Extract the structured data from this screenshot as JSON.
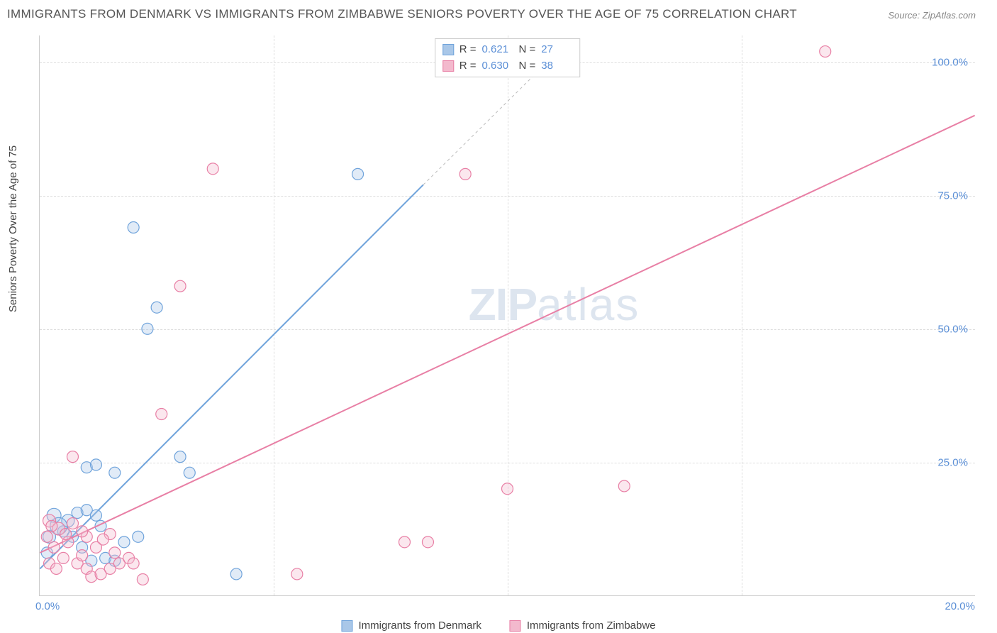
{
  "title": "IMMIGRANTS FROM DENMARK VS IMMIGRANTS FROM ZIMBABWE SENIORS POVERTY OVER THE AGE OF 75 CORRELATION CHART",
  "source": "Source: ZipAtlas.com",
  "watermark_zip": "ZIP",
  "watermark_atlas": "atlas",
  "y_axis_label": "Seniors Poverty Over the Age of 75",
  "chart": {
    "type": "scatter",
    "background_color": "#ffffff",
    "grid_color": "#dddddd",
    "axis_color": "#cccccc",
    "tick_color": "#5b8fd6",
    "tick_fontsize": 15,
    "title_fontsize": 17,
    "title_color": "#555555",
    "xlim": [
      0,
      20
    ],
    "ylim": [
      0,
      105
    ],
    "y_ticks": [
      25,
      50,
      75,
      100
    ],
    "y_tick_labels": [
      "25.0%",
      "50.0%",
      "75.0%",
      "100.0%"
    ],
    "x_ticks": [
      0,
      20
    ],
    "x_tick_labels": [
      "0.0%",
      "20.0%"
    ],
    "x_grid_positions": [
      5,
      10,
      15
    ],
    "marker_radius": 8,
    "marker_stroke_width": 1.2,
    "marker_fill_opacity": 0.35,
    "trend_line_width": 2,
    "dash_line_width": 1,
    "dash_pattern": "4 4",
    "series": [
      {
        "id": "denmark",
        "label": "Immigrants from Denmark",
        "color": "#6fa3db",
        "fill": "#a9c7e8",
        "r_value": "0.621",
        "n_value": "27",
        "trend": {
          "x1": 0,
          "y1": 5,
          "x2": 8.2,
          "y2": 77
        },
        "dash_ext": {
          "x1": 8.2,
          "y1": 77,
          "x2": 11.2,
          "y2": 103
        },
        "points": [
          {
            "x": 2.0,
            "y": 69,
            "r": 8
          },
          {
            "x": 2.5,
            "y": 54,
            "r": 8
          },
          {
            "x": 2.3,
            "y": 50,
            "r": 8
          },
          {
            "x": 6.8,
            "y": 79,
            "r": 8
          },
          {
            "x": 1.0,
            "y": 24,
            "r": 8
          },
          {
            "x": 1.2,
            "y": 24.5,
            "r": 8
          },
          {
            "x": 1.6,
            "y": 23,
            "r": 8
          },
          {
            "x": 3.0,
            "y": 26,
            "r": 8
          },
          {
            "x": 3.2,
            "y": 23,
            "r": 8
          },
          {
            "x": 0.3,
            "y": 15,
            "r": 10
          },
          {
            "x": 0.6,
            "y": 14,
            "r": 9
          },
          {
            "x": 0.8,
            "y": 15.5,
            "r": 8
          },
          {
            "x": 1.0,
            "y": 16,
            "r": 8
          },
          {
            "x": 1.2,
            "y": 15,
            "r": 8
          },
          {
            "x": 0.5,
            "y": 12,
            "r": 8
          },
          {
            "x": 0.2,
            "y": 11,
            "r": 9
          },
          {
            "x": 0.9,
            "y": 9,
            "r": 8
          },
          {
            "x": 1.1,
            "y": 6.5,
            "r": 8
          },
          {
            "x": 1.4,
            "y": 7,
            "r": 8
          },
          {
            "x": 1.6,
            "y": 6.5,
            "r": 8
          },
          {
            "x": 2.1,
            "y": 11,
            "r": 8
          },
          {
            "x": 0.4,
            "y": 13,
            "r": 12
          },
          {
            "x": 0.7,
            "y": 11,
            "r": 8
          },
          {
            "x": 1.8,
            "y": 10,
            "r": 8
          },
          {
            "x": 4.2,
            "y": 4,
            "r": 8
          },
          {
            "x": 0.15,
            "y": 8,
            "r": 8
          },
          {
            "x": 1.3,
            "y": 13,
            "r": 8
          }
        ]
      },
      {
        "id": "zimbabwe",
        "label": "Immigrants from Zimbabwe",
        "color": "#e87fa5",
        "fill": "#f3b9cd",
        "r_value": "0.630",
        "n_value": "38",
        "trend": {
          "x1": 0,
          "y1": 8,
          "x2": 20,
          "y2": 90
        },
        "dash_ext": null,
        "points": [
          {
            "x": 16.8,
            "y": 102,
            "r": 8
          },
          {
            "x": 3.7,
            "y": 80,
            "r": 8
          },
          {
            "x": 9.1,
            "y": 79,
            "r": 8
          },
          {
            "x": 3.0,
            "y": 58,
            "r": 8
          },
          {
            "x": 2.6,
            "y": 34,
            "r": 8
          },
          {
            "x": 0.7,
            "y": 26,
            "r": 8
          },
          {
            "x": 10.0,
            "y": 20,
            "r": 8
          },
          {
            "x": 12.5,
            "y": 20.5,
            "r": 8
          },
          {
            "x": 7.8,
            "y": 10,
            "r": 8
          },
          {
            "x": 8.3,
            "y": 10,
            "r": 8
          },
          {
            "x": 5.5,
            "y": 4,
            "r": 8
          },
          {
            "x": 2.2,
            "y": 3,
            "r": 8
          },
          {
            "x": 0.2,
            "y": 14,
            "r": 9
          },
          {
            "x": 0.4,
            "y": 12.5,
            "r": 9
          },
          {
            "x": 0.6,
            "y": 10,
            "r": 8
          },
          {
            "x": 0.3,
            "y": 9,
            "r": 8
          },
          {
            "x": 0.5,
            "y": 7,
            "r": 8
          },
          {
            "x": 0.8,
            "y": 6,
            "r": 8
          },
          {
            "x": 1.0,
            "y": 5,
            "r": 8
          },
          {
            "x": 1.1,
            "y": 3.5,
            "r": 8
          },
          {
            "x": 1.3,
            "y": 4,
            "r": 8
          },
          {
            "x": 1.5,
            "y": 5,
            "r": 8
          },
          {
            "x": 1.7,
            "y": 6,
            "r": 8
          },
          {
            "x": 1.9,
            "y": 7,
            "r": 8
          },
          {
            "x": 1.0,
            "y": 11,
            "r": 8
          },
          {
            "x": 1.2,
            "y": 9,
            "r": 8
          },
          {
            "x": 1.5,
            "y": 11.5,
            "r": 8
          },
          {
            "x": 1.6,
            "y": 8,
            "r": 8
          },
          {
            "x": 2.0,
            "y": 6,
            "r": 8
          },
          {
            "x": 0.2,
            "y": 6,
            "r": 8
          },
          {
            "x": 0.35,
            "y": 5,
            "r": 8
          },
          {
            "x": 0.55,
            "y": 11.5,
            "r": 8
          },
          {
            "x": 0.7,
            "y": 13.5,
            "r": 8
          },
          {
            "x": 0.9,
            "y": 12,
            "r": 8
          },
          {
            "x": 0.15,
            "y": 11,
            "r": 8
          },
          {
            "x": 0.25,
            "y": 13,
            "r": 8
          },
          {
            "x": 0.9,
            "y": 7.5,
            "r": 8
          },
          {
            "x": 1.35,
            "y": 10.5,
            "r": 8
          }
        ]
      }
    ]
  },
  "stats_labels": {
    "R": "R =",
    "N": "N ="
  }
}
